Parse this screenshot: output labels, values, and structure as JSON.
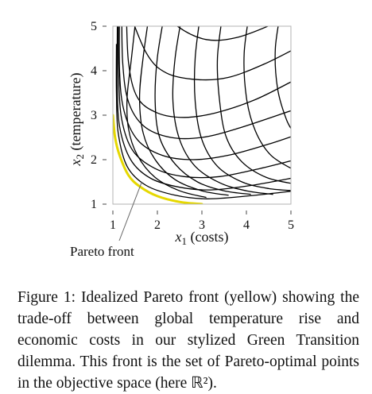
{
  "chart_data": {
    "type": "line",
    "title": "",
    "xlabel_var": "x",
    "xlabel_sub": "1",
    "xlabel_text": " (costs)",
    "ylabel_var": "x",
    "ylabel_sub": "2",
    "ylabel_text": " (temperature)",
    "xlim": [
      1,
      5
    ],
    "ylim": [
      1,
      5
    ],
    "xticks": [
      "1",
      "2",
      "3",
      "4",
      "5"
    ],
    "yticks": [
      "1",
      "2",
      "3",
      "4",
      "5"
    ],
    "grid": false,
    "pareto_front": {
      "color": "#e6d800",
      "points": [
        [
          1.0,
          3.0
        ],
        [
          1.05,
          2.5
        ],
        [
          1.15,
          2.1
        ],
        [
          1.35,
          1.65
        ],
        [
          1.6,
          1.4
        ],
        [
          2.0,
          1.18
        ],
        [
          2.5,
          1.05
        ],
        [
          3.0,
          1.0
        ]
      ]
    },
    "grid_curves": {
      "color": "#000000",
      "family_a": [
        {
          "id": "a1",
          "points": [
            [
              1.3,
              5.5
            ],
            [
              1.35,
              4.2
            ],
            [
              1.55,
              3.4
            ],
            [
              2.0,
              3.05
            ],
            [
              2.6,
              2.95
            ],
            [
              3.3,
              3.05
            ],
            [
              4.2,
              3.35
            ],
            [
              5.1,
              3.8
            ]
          ]
        },
        {
          "id": "a2",
          "points": [
            [
              1.2,
              5.5
            ],
            [
              1.22,
              4.2
            ],
            [
              1.35,
              3.3
            ],
            [
              1.7,
              2.75
            ],
            [
              2.3,
              2.5
            ],
            [
              3.0,
              2.5
            ],
            [
              3.8,
              2.7
            ],
            [
              5.0,
              3.1
            ]
          ]
        },
        {
          "id": "a3",
          "points": [
            [
              1.15,
              5.5
            ],
            [
              1.15,
              4.0
            ],
            [
              1.25,
              3.1
            ],
            [
              1.55,
              2.45
            ],
            [
              2.1,
              2.1
            ],
            [
              2.8,
              2.0
            ],
            [
              3.6,
              2.1
            ],
            [
              4.5,
              2.35
            ],
            [
              5.1,
              2.55
            ]
          ]
        },
        {
          "id": "a4",
          "points": [
            [
              1.12,
              5.2
            ],
            [
              1.13,
              3.9
            ],
            [
              1.2,
              2.9
            ],
            [
              1.45,
              2.2
            ],
            [
              1.95,
              1.8
            ],
            [
              2.6,
              1.62
            ],
            [
              3.4,
              1.62
            ],
            [
              4.3,
              1.8
            ],
            [
              5.1,
              2.0
            ]
          ]
        },
        {
          "id": "a5",
          "points": [
            [
              1.1,
              5.0
            ],
            [
              1.1,
              3.7
            ],
            [
              1.15,
              2.75
            ],
            [
              1.4,
              2.0
            ],
            [
              1.85,
              1.58
            ],
            [
              2.5,
              1.38
            ],
            [
              3.2,
              1.32
            ],
            [
              4.1,
              1.42
            ],
            [
              5.1,
              1.6
            ]
          ]
        },
        {
          "id": "a6",
          "points": [
            [
              1.08,
              4.6
            ],
            [
              1.08,
              3.5
            ],
            [
              1.12,
              2.6
            ],
            [
              1.32,
              1.85
            ],
            [
              1.75,
              1.42
            ],
            [
              2.4,
              1.2
            ],
            [
              3.1,
              1.12
            ],
            [
              4.0,
              1.18
            ],
            [
              5.1,
              1.3
            ]
          ]
        },
        {
          "id": "a7",
          "points": [
            [
              1.3,
              5.5
            ],
            [
              1.75,
              4.4
            ],
            [
              2.2,
              3.95
            ],
            [
              2.9,
              3.8
            ],
            [
              3.6,
              3.85
            ],
            [
              4.4,
              4.15
            ],
            [
              5.1,
              4.5
            ]
          ]
        },
        {
          "id": "a8",
          "points": [
            [
              2.0,
              5.5
            ],
            [
              2.45,
              5.0
            ],
            [
              3.1,
              4.7
            ],
            [
              3.8,
              4.75
            ],
            [
              4.6,
              5.05
            ],
            [
              5.1,
              5.3
            ]
          ]
        }
      ],
      "family_b": [
        {
          "id": "b1",
          "points": [
            [
              1.55,
              5.5
            ],
            [
              1.42,
              4.3
            ],
            [
              1.32,
              3.4
            ],
            [
              1.35,
              2.7
            ],
            [
              1.55,
              2.1
            ],
            [
              1.95,
              1.6
            ],
            [
              2.5,
              1.3
            ],
            [
              3.1,
              1.15
            ]
          ]
        },
        {
          "id": "b2",
          "points": [
            [
              1.85,
              5.5
            ],
            [
              1.68,
              4.3
            ],
            [
              1.6,
              3.4
            ],
            [
              1.68,
              2.6
            ],
            [
              1.95,
              2.0
            ],
            [
              2.4,
              1.55
            ],
            [
              3.0,
              1.3
            ],
            [
              3.6,
              1.2
            ]
          ]
        },
        {
          "id": "b3",
          "points": [
            [
              2.2,
              5.5
            ],
            [
              2.0,
              4.3
            ],
            [
              1.95,
              3.3
            ],
            [
              2.05,
              2.5
            ],
            [
              2.4,
              1.9
            ],
            [
              2.9,
              1.5
            ],
            [
              3.5,
              1.3
            ],
            [
              4.1,
              1.22
            ]
          ]
        },
        {
          "id": "b4",
          "points": [
            [
              2.6,
              5.5
            ],
            [
              2.4,
              4.3
            ],
            [
              2.35,
              3.3
            ],
            [
              2.5,
              2.45
            ],
            [
              2.85,
              1.85
            ],
            [
              3.4,
              1.48
            ],
            [
              4.0,
              1.3
            ],
            [
              4.6,
              1.22
            ]
          ]
        },
        {
          "id": "b5",
          "points": [
            [
              3.0,
              5.5
            ],
            [
              2.85,
              4.3
            ],
            [
              2.85,
              3.3
            ],
            [
              3.0,
              2.45
            ],
            [
              3.35,
              1.85
            ],
            [
              3.9,
              1.5
            ],
            [
              4.5,
              1.35
            ],
            [
              5.1,
              1.3
            ]
          ]
        },
        {
          "id": "b6",
          "points": [
            [
              3.5,
              5.5
            ],
            [
              3.35,
              4.3
            ],
            [
              3.4,
              3.3
            ],
            [
              3.55,
              2.5
            ],
            [
              3.9,
              1.95
            ],
            [
              4.45,
              1.6
            ],
            [
              5.1,
              1.45
            ]
          ]
        },
        {
          "id": "b7",
          "points": [
            [
              4.1,
              5.5
            ],
            [
              3.95,
              4.4
            ],
            [
              4.0,
              3.4
            ],
            [
              4.2,
              2.65
            ],
            [
              4.55,
              2.1
            ],
            [
              5.1,
              1.75
            ]
          ]
        },
        {
          "id": "b8",
          "points": [
            [
              4.8,
              5.5
            ],
            [
              4.65,
              4.5
            ],
            [
              4.7,
              3.6
            ],
            [
              4.9,
              2.9
            ],
            [
              5.1,
              2.55
            ]
          ]
        }
      ]
    },
    "annotation": {
      "text": "Pareto front",
      "points_to": [
        1.65,
        1.5
      ]
    }
  },
  "caption": {
    "text": "Figure 1:  Idealized Pareto front (yellow) showing the trade-off between global temperature rise and economic costs in our stylized Green Transition dilemma.  This front is the set of Pareto-optimal points in the objective space (here ℝ²)."
  }
}
